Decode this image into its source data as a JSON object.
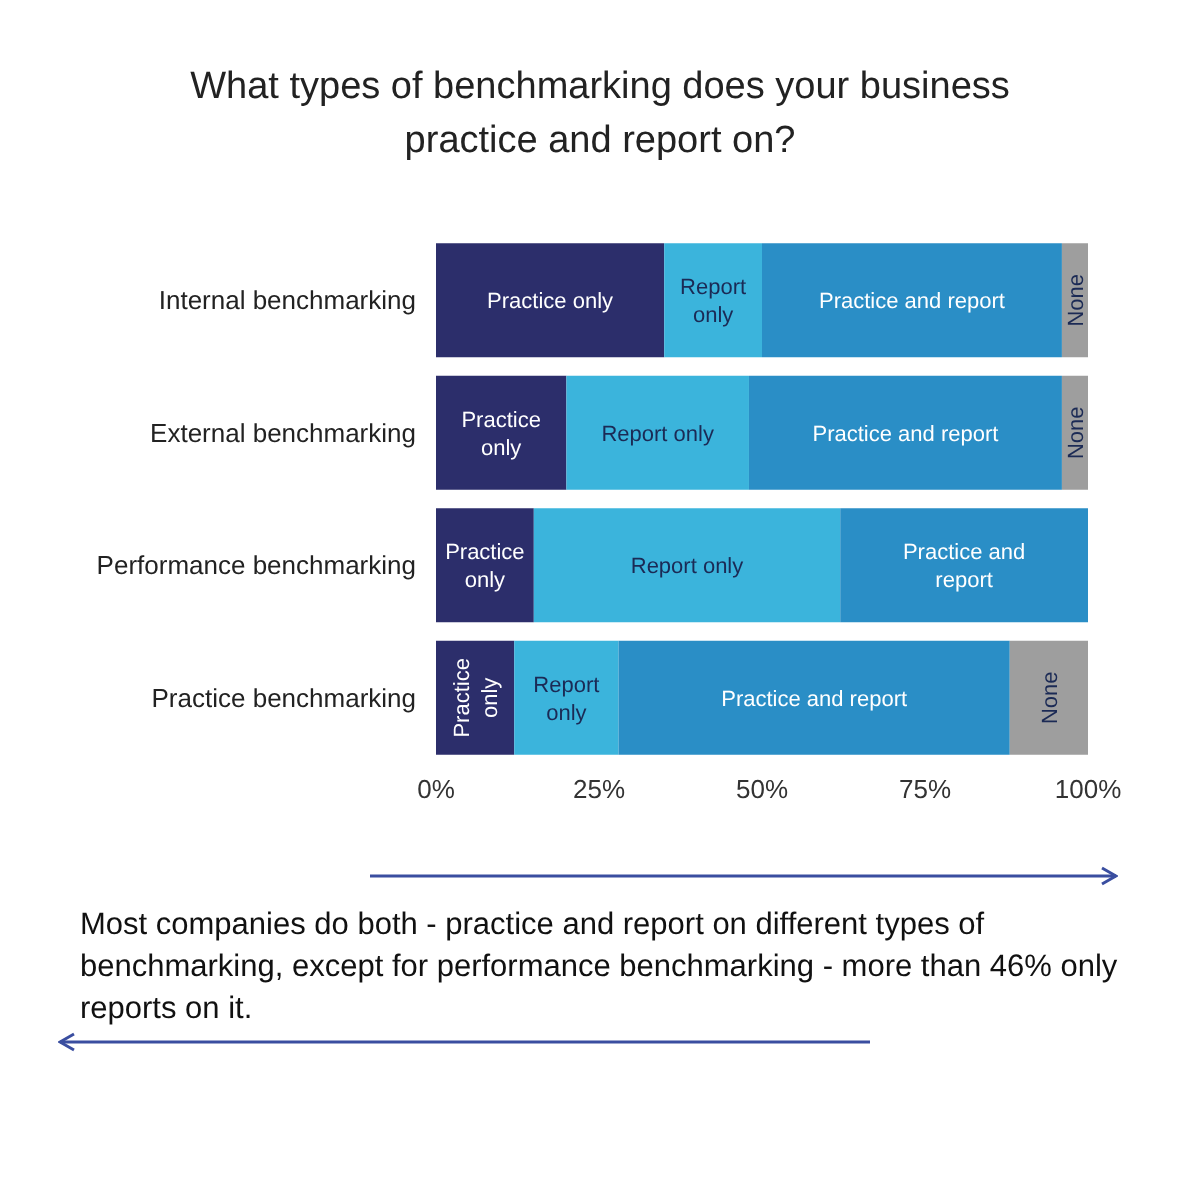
{
  "chart_data": {
    "type": "bar",
    "orientation": "horizontal",
    "stacked": true,
    "title": "What types of benchmarking does your business practice and report on?",
    "categories": [
      "Internal benchmarking",
      "External benchmarking",
      "Performance benchmarking",
      "Practice benchmarking"
    ],
    "series": [
      {
        "name": "Practice only",
        "color": "#2c2e6b",
        "values": [
          35,
          20,
          15,
          12
        ]
      },
      {
        "name": "Report only",
        "color": "#3bb4dc",
        "values": [
          15,
          28,
          47,
          16
        ]
      },
      {
        "name": "Practice and report",
        "color": "#2a8ec6",
        "values": [
          46,
          48,
          38,
          60
        ]
      },
      {
        "name": "None",
        "color": "#9e9e9e",
        "values": [
          4,
          4,
          0,
          12
        ]
      }
    ],
    "xlim": [
      0,
      100
    ],
    "xticks": [
      {
        "value": 0,
        "label": "0%"
      },
      {
        "value": 25,
        "label": "25%"
      },
      {
        "value": 50,
        "label": "50%"
      },
      {
        "value": 75,
        "label": "75%"
      },
      {
        "value": 100,
        "label": "100%"
      }
    ],
    "grid": false,
    "legend": false,
    "annotations": [
      "Most companies do both - practice and report on different types of benchmarking, except for performance benchmarking - more than 46% only reports on it."
    ]
  }
}
